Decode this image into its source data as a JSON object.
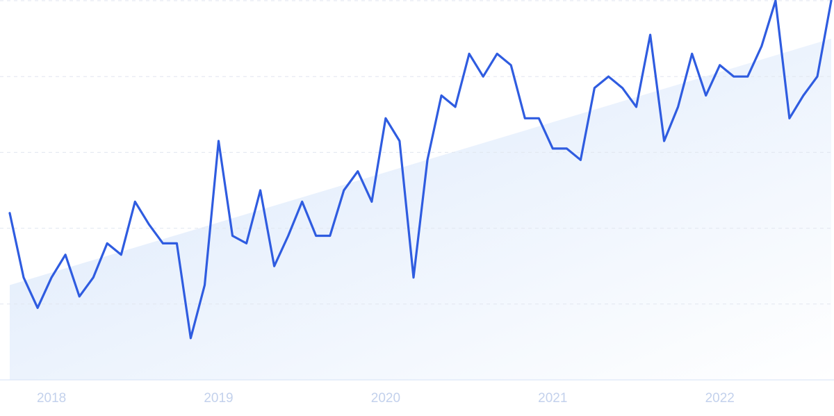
{
  "chart_data": {
    "type": "line",
    "categories": [
      null,
      null,
      null,
      "2018",
      null,
      null,
      null,
      null,
      null,
      null,
      null,
      null,
      null,
      null,
      null,
      "2019",
      null,
      null,
      null,
      null,
      null,
      null,
      null,
      null,
      null,
      null,
      null,
      "2020",
      null,
      null,
      null,
      null,
      null,
      null,
      null,
      null,
      null,
      null,
      null,
      "2021",
      null,
      null,
      null,
      null,
      null,
      null,
      null,
      null,
      null,
      null,
      null,
      "2022",
      null,
      null,
      null,
      null,
      null,
      null,
      null,
      null
    ],
    "values": [
      44,
      27,
      19,
      27,
      33,
      22,
      27,
      36,
      33,
      47,
      41,
      36,
      36,
      11,
      25,
      63,
      38,
      36,
      50,
      30,
      38,
      47,
      38,
      38,
      50,
      55,
      47,
      69,
      63,
      27,
      58,
      75,
      72,
      86,
      80,
      86,
      83,
      69,
      69,
      61,
      61,
      58,
      77,
      80,
      77,
      72,
      91,
      63,
      72,
      86,
      75,
      83,
      80,
      80,
      88,
      100,
      69,
      75,
      80,
      100
    ],
    "trend": [
      25,
      90
    ],
    "color": "#2f5ce0",
    "ylim": [
      0,
      100
    ],
    "yticks": [
      0,
      20,
      40,
      60,
      80,
      100
    ],
    "grid": true
  }
}
